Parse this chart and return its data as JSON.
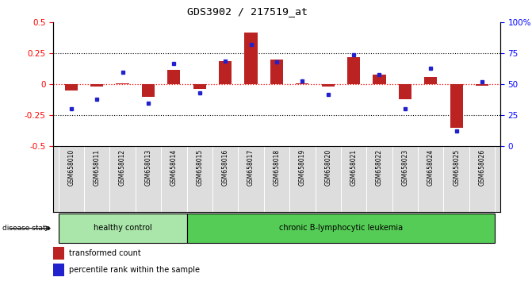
{
  "title": "GDS3902 / 217519_at",
  "samples": [
    "GSM658010",
    "GSM658011",
    "GSM658012",
    "GSM658013",
    "GSM658014",
    "GSM658015",
    "GSM658016",
    "GSM658017",
    "GSM658018",
    "GSM658019",
    "GSM658020",
    "GSM658021",
    "GSM658022",
    "GSM658023",
    "GSM658024",
    "GSM658025",
    "GSM658026"
  ],
  "red_values": [
    -0.05,
    -0.02,
    0.01,
    -0.1,
    0.12,
    -0.04,
    0.19,
    0.42,
    0.2,
    0.01,
    -0.02,
    0.22,
    0.08,
    -0.12,
    0.06,
    -0.35,
    -0.01
  ],
  "blue_values": [
    30,
    38,
    60,
    35,
    67,
    43,
    69,
    82,
    68,
    53,
    42,
    74,
    58,
    30,
    63,
    12,
    52
  ],
  "group1_count": 5,
  "group1_label": "healthy control",
  "group2_label": "chronic B-lymphocytic leukemia",
  "group1_color": "#aae6aa",
  "group2_color": "#55cc55",
  "bar_color": "#bb2222",
  "dot_color": "#2222cc",
  "legend_red": "transformed count",
  "legend_blue": "percentile rank within the sample",
  "ylim_left": [
    -0.5,
    0.5
  ],
  "ylim_right": [
    0,
    100
  ],
  "yticks_left": [
    -0.5,
    -0.25,
    0,
    0.25,
    0.5
  ],
  "yticks_right": [
    0,
    25,
    50,
    75,
    100
  ],
  "background_color": "#ffffff",
  "label_bg": "#dddddd"
}
